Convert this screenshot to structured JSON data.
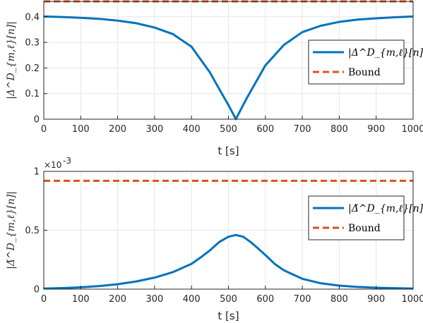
{
  "colors": {
    "series": "#0072BD",
    "bound": "#D95319",
    "grid": "#e6e6e6",
    "axis": "#262626"
  },
  "chart_data": [
    {
      "type": "line",
      "xlabel": "t [s]",
      "ylabel": "|Δ^D_{m,ℓ}[n]|",
      "xlim": [
        0,
        1000
      ],
      "ylim": [
        0,
        0.46
      ],
      "xticks": [
        "0",
        "100",
        "200",
        "300",
        "400",
        "500",
        "600",
        "700",
        "800",
        "900",
        "1000"
      ],
      "yticks": [
        "0",
        "0.1",
        "0.2",
        "0.3",
        "0.4"
      ],
      "grid": true,
      "legend_position": "right",
      "series": [
        {
          "name": "|Δ^D_{m,ℓ}[n]|",
          "style": "solid",
          "x": [
            0,
            50,
            100,
            150,
            200,
            250,
            300,
            350,
            400,
            450,
            475,
            500,
            510,
            520,
            530,
            550,
            600,
            650,
            700,
            750,
            800,
            850,
            900,
            950,
            1000
          ],
          "y": [
            0.401,
            0.399,
            0.396,
            0.392,
            0.385,
            0.375,
            0.358,
            0.332,
            0.283,
            0.182,
            0.118,
            0.055,
            0.028,
            0.0,
            0.028,
            0.083,
            0.21,
            0.29,
            0.34,
            0.365,
            0.38,
            0.389,
            0.394,
            0.398,
            0.401
          ]
        },
        {
          "name": "Bound",
          "style": "dashed",
          "x": [
            0,
            1000
          ],
          "y": [
            0.46,
            0.46
          ]
        }
      ]
    },
    {
      "type": "line",
      "xlabel": "t [s]",
      "ylabel": "|Δ̌^D_{m,ℓ}[n]|",
      "exponent_label": "×10",
      "exponent_power": "-3",
      "xlim": [
        0,
        1000
      ],
      "ylim": [
        0,
        1
      ],
      "xticks": [
        "0",
        "100",
        "200",
        "300",
        "400",
        "500",
        "600",
        "700",
        "800",
        "900",
        "1000"
      ],
      "yticks": [
        "0",
        "0.5",
        "1"
      ],
      "grid": true,
      "legend_position": "right",
      "series": [
        {
          "name": "|Δ̌^D_{m,ℓ}[n]|",
          "style": "solid",
          "x": [
            0,
            50,
            100,
            150,
            200,
            250,
            300,
            350,
            400,
            425,
            450,
            475,
            500,
            520,
            540,
            560,
            575,
            600,
            625,
            650,
            700,
            750,
            800,
            850,
            900,
            950,
            1000
          ],
          "y": [
            0.005,
            0.009,
            0.016,
            0.026,
            0.042,
            0.065,
            0.098,
            0.145,
            0.215,
            0.27,
            0.33,
            0.4,
            0.445,
            0.46,
            0.445,
            0.4,
            0.36,
            0.29,
            0.215,
            0.16,
            0.088,
            0.05,
            0.03,
            0.019,
            0.012,
            0.008,
            0.005
          ]
        },
        {
          "name": "Bound",
          "style": "dashed",
          "x": [
            0,
            1000
          ],
          "y": [
            0.92,
            0.92
          ]
        }
      ]
    }
  ]
}
